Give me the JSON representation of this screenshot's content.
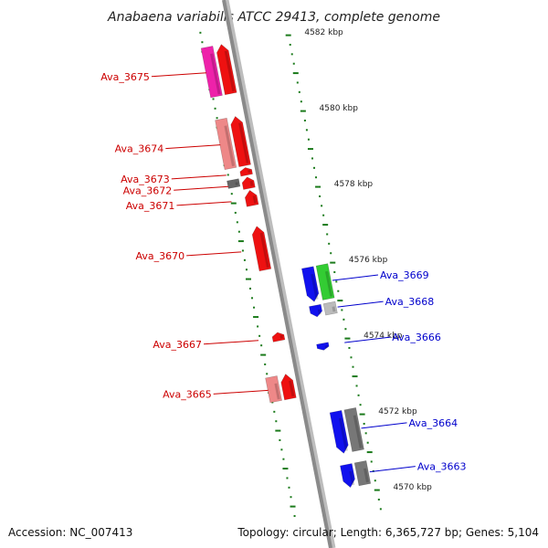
{
  "title": "Anabaena variabilis ATCC 29413, complete genome",
  "footer": {
    "accession": "Accession: NC_007413",
    "summary": "Topology: circular; Length: 6,365,727 bp; Genes: 5,104"
  },
  "colors": {
    "forward_label": "#cc0000",
    "reverse_label": "#0000cc",
    "tick": "#1a7a1a",
    "backbone": "#8a8a8a"
  },
  "kbp_ticks": [
    {
      "label": "4582 kbp",
      "pos": 4582
    },
    {
      "label": "4580 kbp",
      "pos": 4580
    },
    {
      "label": "4578 kbp",
      "pos": 4578
    },
    {
      "label": "4576 kbp",
      "pos": 4576
    },
    {
      "label": "4574 kbp",
      "pos": 4574
    },
    {
      "label": "4572 kbp",
      "pos": 4572
    },
    {
      "label": "4570 kbp",
      "pos": 4570
    }
  ],
  "genes": [
    {
      "name": "Ava_3675",
      "strand": "+",
      "from": 4582.1,
      "to": 4580.8,
      "color": "#ee1111"
    },
    {
      "name": "Ava_3674",
      "strand": "+",
      "from": 4580.2,
      "to": 4578.9,
      "color": "#ee1111"
    },
    {
      "name": "Ava_3673",
      "strand": "+",
      "from": 4578.85,
      "to": 4578.65,
      "color": "#ee1111"
    },
    {
      "name": "Ava_3672",
      "strand": "+",
      "from": 4578.6,
      "to": 4578.3,
      "color": "#ee1111"
    },
    {
      "name": "Ava_3671",
      "strand": "+",
      "from": 4578.25,
      "to": 4577.85,
      "color": "#ee1111"
    },
    {
      "name": "Ava_3670",
      "strand": "+",
      "from": 4577.3,
      "to": 4576.15,
      "color": "#ee1111"
    },
    {
      "name": "Ava_3669",
      "strand": "-",
      "from": 4576.0,
      "to": 4575.1,
      "color": "#1111ee"
    },
    {
      "name": "Ava_3668",
      "strand": "-",
      "from": 4575.0,
      "to": 4574.7,
      "color": "#1111ee"
    },
    {
      "name": "Ava_3667",
      "strand": "+",
      "from": 4574.5,
      "to": 4574.28,
      "color": "#ee1111"
    },
    {
      "name": "Ava_3666",
      "strand": "-",
      "from": 4574.0,
      "to": 4573.82,
      "color": "#1111ee"
    },
    {
      "name": "Ava_3665",
      "strand": "+",
      "from": 4573.4,
      "to": 4572.75,
      "color": "#ee1111"
    },
    {
      "name": "Ava_3664",
      "strand": "-",
      "from": 4572.2,
      "to": 4571.1,
      "color": "#1111ee"
    },
    {
      "name": "Ava_3663",
      "strand": "-",
      "from": 4570.8,
      "to": 4570.2,
      "color": "#1111ee"
    }
  ],
  "cog_boxes": [
    {
      "strand": "+",
      "from": 4582.1,
      "to": 4580.8,
      "color": "#ee22aa"
    },
    {
      "strand": "+",
      "from": 4580.2,
      "to": 4578.9,
      "color": "#ee8888"
    },
    {
      "strand": "+",
      "from": 4578.6,
      "to": 4578.4,
      "color": "#666666"
    },
    {
      "strand": "+",
      "from": 4573.4,
      "to": 4572.75,
      "color": "#ee8888"
    },
    {
      "strand": "-",
      "from": 4576.0,
      "to": 4575.1,
      "color": "#33cc33"
    },
    {
      "strand": "-",
      "from": 4575.0,
      "to": 4574.7,
      "color": "#bbbbbb"
    },
    {
      "strand": "-",
      "from": 4572.2,
      "to": 4571.1,
      "color": "#777777"
    },
    {
      "strand": "-",
      "from": 4570.8,
      "to": 4570.2,
      "color": "#777777"
    }
  ]
}
